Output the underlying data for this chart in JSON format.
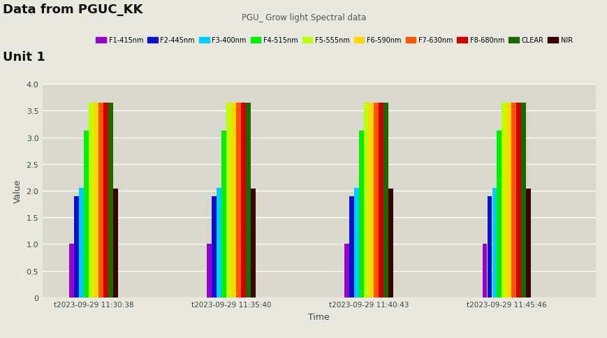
{
  "title_line1": "Data from PGUC_KK",
  "title_line2": "Unit 1",
  "chart_title": "PGU_ Grow light Spectral data",
  "xlabel": "Time",
  "ylabel": "Value",
  "fig_bg_color": "#e8e8de",
  "plot_bg_color": "#d8d8cc",
  "grid_color": "#ffffff",
  "categories": [
    "t2023-09-29 11:30:38",
    "t2023-09-29 11:35:40",
    "t2023-09-29 11:40:43",
    "t2023-09-29 11:45:46"
  ],
  "series": [
    {
      "label": "F1-415nm",
      "color": "#9900CC",
      "values": [
        1.0,
        1.0,
        1.0,
        1.0
      ]
    },
    {
      "label": "F2-445nm",
      "color": "#1010CC",
      "values": [
        1.9,
        1.9,
        1.9,
        1.9
      ]
    },
    {
      "label": "F3-400nm",
      "color": "#00CCFF",
      "values": [
        2.05,
        2.05,
        2.05,
        2.05
      ]
    },
    {
      "label": "F4-515nm",
      "color": "#00EE00",
      "values": [
        3.12,
        3.12,
        3.12,
        3.12
      ]
    },
    {
      "label": "F5-555nm",
      "color": "#BBFF00",
      "values": [
        3.65,
        3.65,
        3.65,
        3.65
      ]
    },
    {
      "label": "F6-590nm",
      "color": "#FFD700",
      "values": [
        3.65,
        3.65,
        3.65,
        3.65
      ]
    },
    {
      "label": "F7-630nm",
      "color": "#FF5500",
      "values": [
        3.65,
        3.65,
        3.65,
        3.65
      ]
    },
    {
      "label": "F8-680nm",
      "color": "#CC0000",
      "values": [
        3.65,
        3.65,
        3.65,
        3.65
      ]
    },
    {
      "label": "CLEAR",
      "color": "#1E6600",
      "values": [
        3.65,
        3.65,
        3.65,
        3.65
      ]
    },
    {
      "label": "NIR",
      "color": "#3A0000",
      "values": [
        2.04,
        2.04,
        2.04,
        2.04
      ]
    }
  ],
  "ylim": [
    0,
    4.0
  ],
  "yticks": [
    0,
    0.5,
    1.0,
    1.5,
    2.0,
    2.5,
    3.0,
    3.5,
    4.0
  ]
}
